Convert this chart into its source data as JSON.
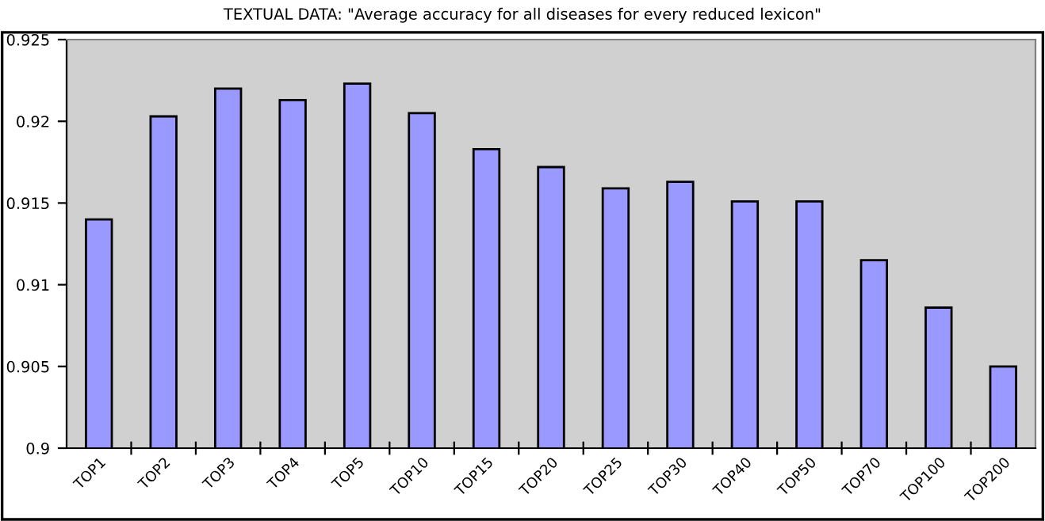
{
  "chart_data": {
    "type": "bar",
    "title": "TEXTUAL DATA: \"Average accuracy for all diseases for every reduced lexicon\"",
    "categories": [
      "TOP1",
      "TOP2",
      "TOP3",
      "TOP4",
      "TOP5",
      "TOP10",
      "TOP15",
      "TOP20",
      "TOP25",
      "TOP30",
      "TOP40",
      "TOP50",
      "TOP70",
      "TOP100",
      "TOP200"
    ],
    "values": [
      0.914,
      0.9203,
      0.922,
      0.9213,
      0.9223,
      0.9205,
      0.9183,
      0.9172,
      0.9159,
      0.9163,
      0.9151,
      0.9151,
      0.9115,
      0.9086,
      0.905
    ],
    "color": "#9999ff",
    "ylim": [
      0.9,
      0.925
    ],
    "yticks": [
      {
        "value": 0.9,
        "label": "0.9"
      },
      0.905,
      {
        "value": 0.91,
        "label": "0.91"
      },
      0.915,
      {
        "value": 0.92,
        "label": "0.92"
      },
      0.925
    ],
    "grid": false
  }
}
